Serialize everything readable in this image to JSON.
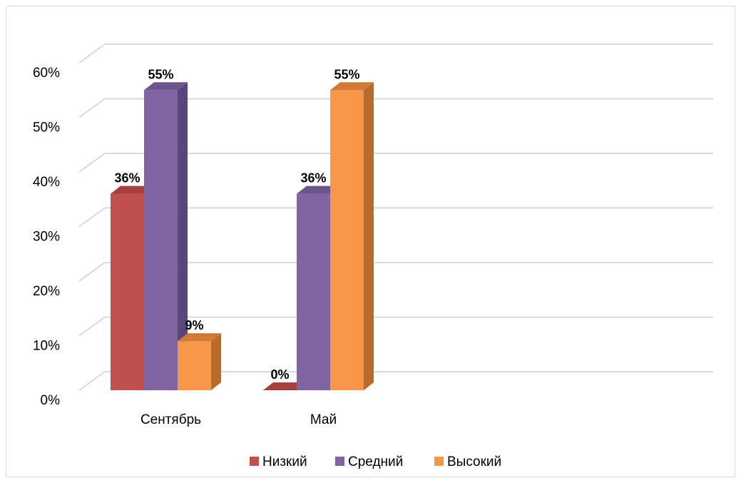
{
  "chart_data": {
    "type": "bar",
    "categories": [
      "Сентябрь",
      "Май"
    ],
    "series": [
      {
        "name": "Низкий",
        "values": [
          36,
          0
        ],
        "color": "#c0504d",
        "side": "#943634",
        "top": "#a5403d"
      },
      {
        "name": "Средний",
        "values": [
          55,
          36
        ],
        "color": "#8064a2",
        "side": "#5a467a",
        "top": "#6c558c"
      },
      {
        "name": "Высокий",
        "values": [
          9,
          55
        ],
        "color": "#f79646",
        "side": "#b86c2c",
        "top": "#d07a35"
      }
    ],
    "data_labels": [
      [
        "36%",
        "0%"
      ],
      [
        "55%",
        "36%"
      ],
      [
        "9%",
        "55%"
      ]
    ],
    "yticks": [
      "0%",
      "10%",
      "20%",
      "30%",
      "40%",
      "50%",
      "60%"
    ],
    "ylim": [
      0,
      60
    ],
    "grid": true,
    "legend_position": "bottom",
    "title": "",
    "xlabel": "",
    "ylabel": ""
  }
}
